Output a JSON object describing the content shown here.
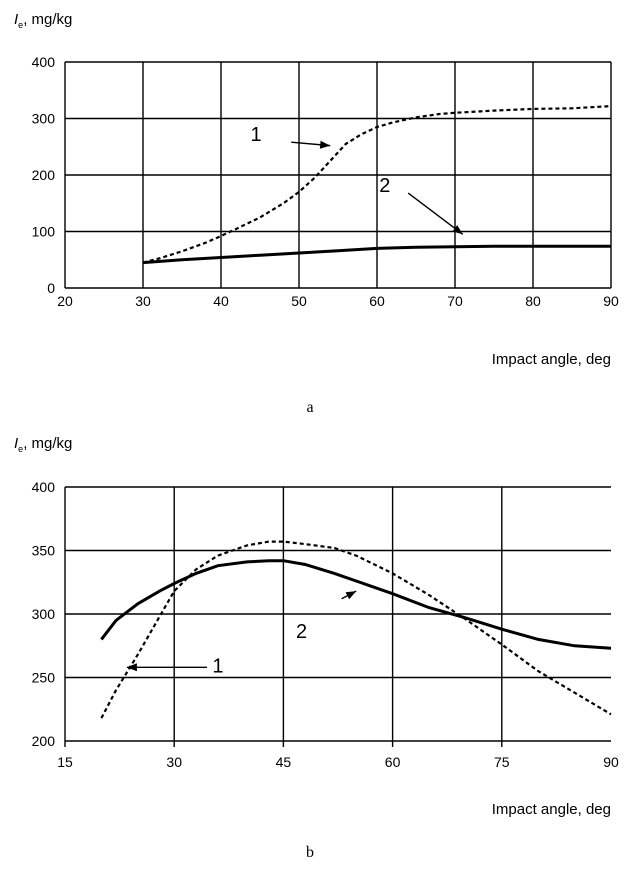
{
  "chart_data": [
    {
      "type": "line",
      "ylabel_main": "I",
      "ylabel_sub": "e",
      "ylabel_rest": ", mg/kg",
      "xlabel": "Impact angle, deg",
      "xlim": [
        20,
        90
      ],
      "ylim": [
        0,
        400
      ],
      "xticks": [
        20,
        30,
        40,
        50,
        60,
        70,
        80,
        90
      ],
      "yticks": [
        0,
        100,
        200,
        300,
        400
      ],
      "grid": true,
      "caption": "a",
      "series": [
        {
          "name": "1",
          "style": "dashed",
          "x": [
            30,
            32,
            35,
            38,
            40,
            42,
            45,
            48,
            50,
            52,
            54,
            56,
            58,
            60,
            62,
            65,
            68,
            70,
            75,
            80,
            85,
            90
          ],
          "y": [
            45,
            52,
            65,
            80,
            92,
            105,
            125,
            150,
            170,
            195,
            225,
            255,
            272,
            285,
            293,
            302,
            308,
            310,
            314,
            317,
            318,
            322
          ]
        },
        {
          "name": "2",
          "style": "solid",
          "x": [
            30,
            35,
            40,
            45,
            50,
            55,
            60,
            65,
            70,
            75,
            80,
            85,
            90
          ],
          "y": [
            45,
            50,
            54,
            58,
            62,
            66,
            70,
            72,
            73,
            74,
            74,
            74,
            74
          ]
        }
      ],
      "annotations": [
        {
          "label": "1",
          "text_at": [
            44.5,
            260
          ],
          "arrow_from": [
            49,
            258
          ],
          "arrow_to": [
            54,
            252
          ]
        },
        {
          "label": "2",
          "text_at": [
            61,
            170
          ],
          "arrow_from": [
            64,
            168
          ],
          "arrow_to": [
            71,
            95
          ]
        }
      ]
    },
    {
      "type": "line",
      "ylabel_main": "I",
      "ylabel_sub": "e",
      "ylabel_rest": ", mg/kg",
      "xlabel": "Impact angle, deg",
      "xlim": [
        15,
        90
      ],
      "ylim": [
        200,
        400
      ],
      "xticks": [
        15,
        30,
        45,
        60,
        75,
        90
      ],
      "yticks": [
        200,
        250,
        300,
        350,
        400
      ],
      "grid": true,
      "caption": "b",
      "series": [
        {
          "name": "1",
          "style": "dashed",
          "x": [
            20,
            22,
            25,
            28,
            30,
            33,
            36,
            40,
            43,
            45,
            48,
            52,
            55,
            60,
            65,
            70,
            75,
            80,
            85,
            90
          ],
          "y": [
            218,
            240,
            268,
            298,
            318,
            335,
            346,
            354,
            357,
            357,
            355,
            352,
            346,
            332,
            315,
            296,
            276,
            255,
            238,
            221
          ]
        },
        {
          "name": "2",
          "style": "solid",
          "x": [
            20,
            22,
            25,
            28,
            30,
            33,
            36,
            40,
            43,
            45,
            48,
            52,
            55,
            60,
            65,
            70,
            75,
            80,
            85,
            90
          ],
          "y": [
            280,
            295,
            308,
            318,
            324,
            332,
            338,
            341,
            342,
            342,
            339,
            332,
            326,
            316,
            305,
            297,
            288,
            280,
            275,
            273
          ]
        }
      ],
      "annotations": [
        {
          "label": "1",
          "text_at": [
            36,
            254
          ],
          "arrow_from": [
            34.5,
            258
          ],
          "arrow_to": [
            23.5,
            258
          ]
        },
        {
          "label": "2",
          "text_at": [
            47.5,
            281
          ],
          "arrow_from": [
            53,
            312
          ],
          "arrow_to": [
            55,
            318
          ]
        }
      ]
    }
  ]
}
